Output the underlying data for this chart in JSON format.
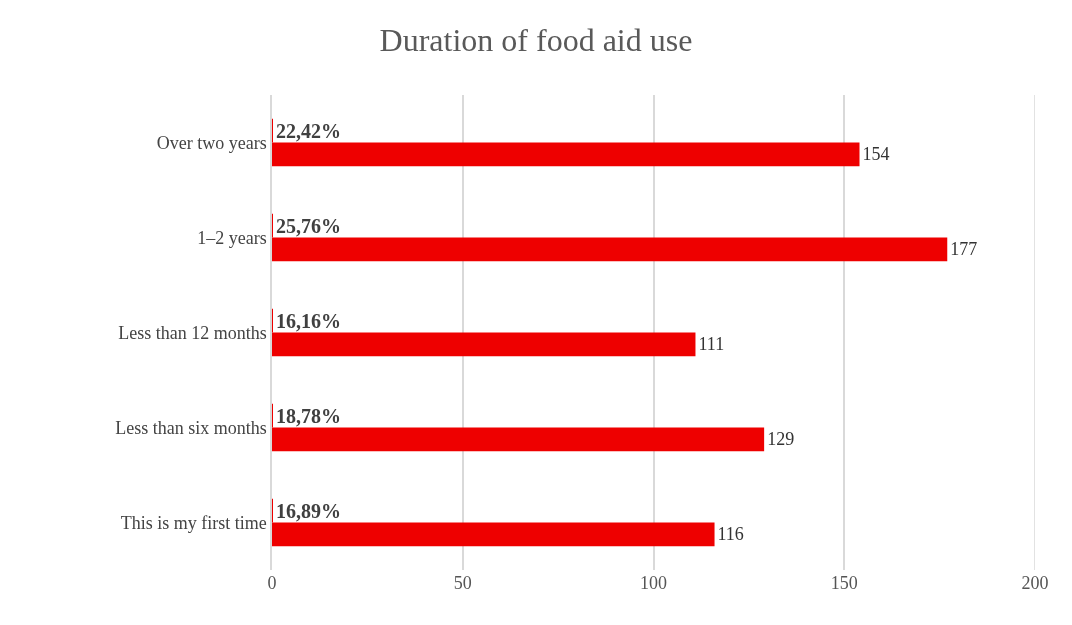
{
  "chart_data": {
    "type": "bar",
    "orientation": "horizontal",
    "title": "Duration of food aid use",
    "categories": [
      "Over two years",
      "1–2 years",
      "Less than 12 months",
      "Less than six months",
      "This is my first time"
    ],
    "series": [
      {
        "color": "#ee0000",
        "values": [
          0.2242,
          0.2576,
          0.1616,
          0.1878,
          0.1689
        ],
        "value_labels": [
          "22,42%",
          "25,76%",
          "16,16%",
          "18,78%",
          "16,89%"
        ]
      },
      {
        "color": "#ee0000",
        "values": [
          154,
          177,
          111,
          129,
          116
        ],
        "value_labels": [
          "154",
          "177",
          "111",
          "129",
          "116"
        ]
      }
    ],
    "xlim": [
      0,
      200
    ],
    "xticks": [
      0,
      50,
      100,
      150,
      200
    ],
    "grid": "x"
  }
}
